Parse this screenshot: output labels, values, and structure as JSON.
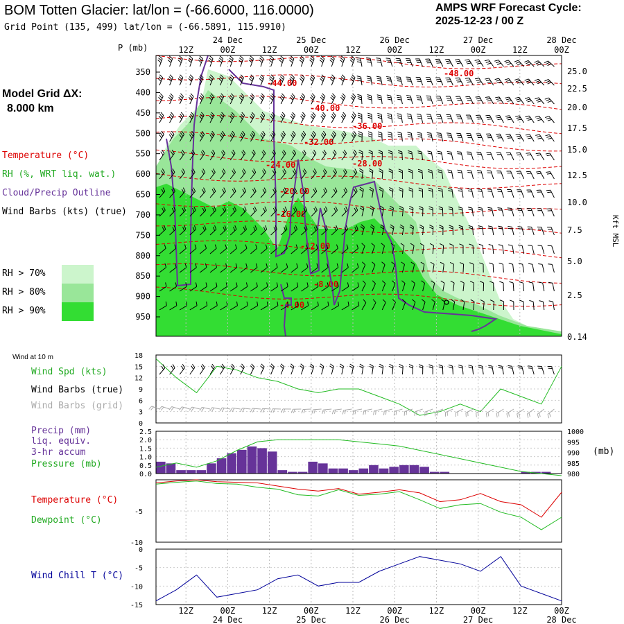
{
  "header": {
    "title": "BOM Totten Glacier:  lat/lon = (-66.6000, 116.0000)",
    "subtitle": "Grid Point (135, 499) lat/lon = (-66.5891, 115.9910)",
    "cycle_label": "AMPS WRF Forecast Cycle:",
    "cycle_value": "2025-12-23 / 00  Z",
    "grid_label": "Model Grid ΔX:",
    "grid_value": "8.000 km"
  },
  "legend": {
    "temperature": "Temperature (°C)",
    "rh": "RH (%, WRT liq. wat.)",
    "cloud": "Cloud/Precip Outline",
    "wind": "Wind Barbs (kts) (true)",
    "rh70": "RH > 70%",
    "rh80": "RH > 80%",
    "rh90": "RH > 90%"
  },
  "time_axis": {
    "top_hours": [
      "12Z",
      "00Z",
      "12Z",
      "00Z",
      "12Z",
      "00Z",
      "12Z",
      "00Z",
      "12Z",
      "00Z"
    ],
    "dates": [
      "24 Dec",
      "25 Dec",
      "26 Dec",
      "27 Dec",
      "28 Dec"
    ],
    "bottom_hours": [
      "12Z",
      "00Z",
      "12Z",
      "00Z",
      "12Z",
      "00Z",
      "12Z",
      "00Z",
      "12Z",
      "00Z"
    ]
  },
  "colors": {
    "rh70": "#ccf5cc",
    "rh80": "#99e699",
    "rh90": "#33dd33",
    "temperature": "#dd0000",
    "cloud_outline": "#663399",
    "wind_speed": "#22bb22",
    "precip": "#663399",
    "pressure": "#22bb22",
    "dewpoint": "#22bb22",
    "wind_chill": "#000099",
    "grid_barbs": "#aaaaaa"
  },
  "chart_data": [
    {
      "type": "heatmap",
      "panel": "cross_section",
      "y_axis_label": "P (mb)",
      "pressure_ticks": [
        350,
        400,
        450,
        500,
        550,
        600,
        650,
        700,
        750,
        800,
        850,
        900,
        950
      ],
      "right_axis_label": "Kft MSL",
      "height_ticks": [
        "25.0",
        "22.5",
        "20.0",
        "17.5",
        "15.0",
        "12.5",
        "10.0",
        "7.5",
        "5.0",
        "2.5",
        "0.14"
      ],
      "temperature_contour_labels": [
        "-48.00",
        "-44.00",
        "-40.00",
        "-36.00",
        "-32.00",
        "-28.00",
        "-24.00",
        "-20.00",
        "-16.00",
        "-12.00",
        "-8.00",
        "-4.00"
      ],
      "rh_levels": [
        "RH > 70%",
        "RH > 80%",
        "RH > 90%"
      ]
    },
    {
      "type": "line",
      "panel": "wind_10m",
      "panel_title": "Wind at 10 m",
      "series_labels": [
        "Wind Spd (kts)",
        "Wind Barbs (true)",
        "Wind Barbs (grid)"
      ],
      "y_ticks": [
        0,
        3,
        6,
        9,
        12,
        15,
        18
      ],
      "ylim": [
        0,
        18
      ],
      "x_hours": [
        0,
        6,
        12,
        18,
        24,
        30,
        36,
        42,
        48,
        54,
        60,
        66,
        72,
        78,
        84,
        90,
        96,
        102,
        108,
        114,
        120
      ],
      "wind_speed": [
        17,
        12,
        8,
        15,
        14,
        12,
        11,
        9,
        8,
        9,
        9,
        7,
        5,
        2,
        3,
        5,
        3,
        9,
        7,
        5,
        15
      ]
    },
    {
      "type": "bar",
      "panel": "precip_pressure",
      "series_labels": [
        "Precip (mm)",
        "liq. equiv.",
        "3-hr accum",
        "Pressure (mb)"
      ],
      "left_ticks": [
        "0.0",
        "0.5",
        "1.0",
        "1.5",
        "2.0",
        "2.5"
      ],
      "right_ticks": [
        980,
        985,
        990,
        995,
        1000
      ],
      "right_axis_unit": "(mb)",
      "precip_3hr": [
        0.7,
        0.6,
        0.2,
        0.2,
        0.2,
        0.6,
        0.9,
        1.2,
        1.4,
        1.6,
        1.5,
        1.3,
        0.2,
        0.1,
        0.1,
        0.7,
        0.6,
        0.3,
        0.3,
        0.2,
        0.3,
        0.5,
        0.3,
        0.4,
        0.5,
        0.5,
        0.4,
        0.1,
        0.1,
        0.0,
        0.0,
        0.0,
        0.0,
        0.0,
        0.0,
        0.0,
        0.1,
        0.1,
        0.1,
        0.0
      ],
      "pressure": [
        983,
        985,
        983,
        986,
        991,
        995,
        996,
        996,
        996,
        996,
        995,
        994,
        993,
        991,
        989,
        987,
        985,
        983,
        981,
        980,
        979
      ]
    },
    {
      "type": "line",
      "panel": "temp_dewpoint",
      "series_labels": [
        "Temperature (°C)",
        "Dewpoint (°C)"
      ],
      "y_ticks": [
        -10,
        -5
      ],
      "ylim": [
        -10,
        0
      ],
      "x_hours": [
        0,
        6,
        12,
        18,
        24,
        30,
        36,
        42,
        48,
        54,
        60,
        66,
        72,
        78,
        84,
        90,
        96,
        102,
        108,
        114,
        120
      ],
      "temperature": [
        -0.5,
        -0.2,
        0.0,
        -0.3,
        -0.4,
        -0.5,
        -1.0,
        -1.5,
        -1.8,
        -1.4,
        -2.3,
        -2.0,
        -1.6,
        -2.1,
        -3.5,
        -3.2,
        -2.2,
        -3.5,
        -4.0,
        -6.0,
        -2.0
      ],
      "dewpoint": [
        -0.7,
        -0.4,
        -0.2,
        -0.6,
        -0.7,
        -1.2,
        -1.5,
        -2.4,
        -2.6,
        -1.6,
        -2.5,
        -2.3,
        -1.9,
        -3.2,
        -4.6,
        -4.0,
        -3.8,
        -5.2,
        -6.0,
        -8.0,
        -6.0
      ]
    },
    {
      "type": "line",
      "panel": "wind_chill",
      "series_labels": [
        "Wind Chill T (°C)"
      ],
      "y_ticks": [
        -15,
        -10,
        -5,
        0
      ],
      "ylim": [
        -15,
        0
      ],
      "x_hours": [
        0,
        6,
        12,
        18,
        24,
        30,
        36,
        42,
        48,
        54,
        60,
        66,
        72,
        78,
        84,
        90,
        96,
        102,
        108,
        114,
        120
      ],
      "wind_chill": [
        -14,
        -11,
        -7,
        -13,
        -12,
        -11,
        -8,
        -7,
        -10,
        -9,
        -9,
        -6,
        -4,
        -2,
        -3,
        -4,
        -6,
        -2,
        -10,
        -12,
        -14
      ]
    }
  ]
}
